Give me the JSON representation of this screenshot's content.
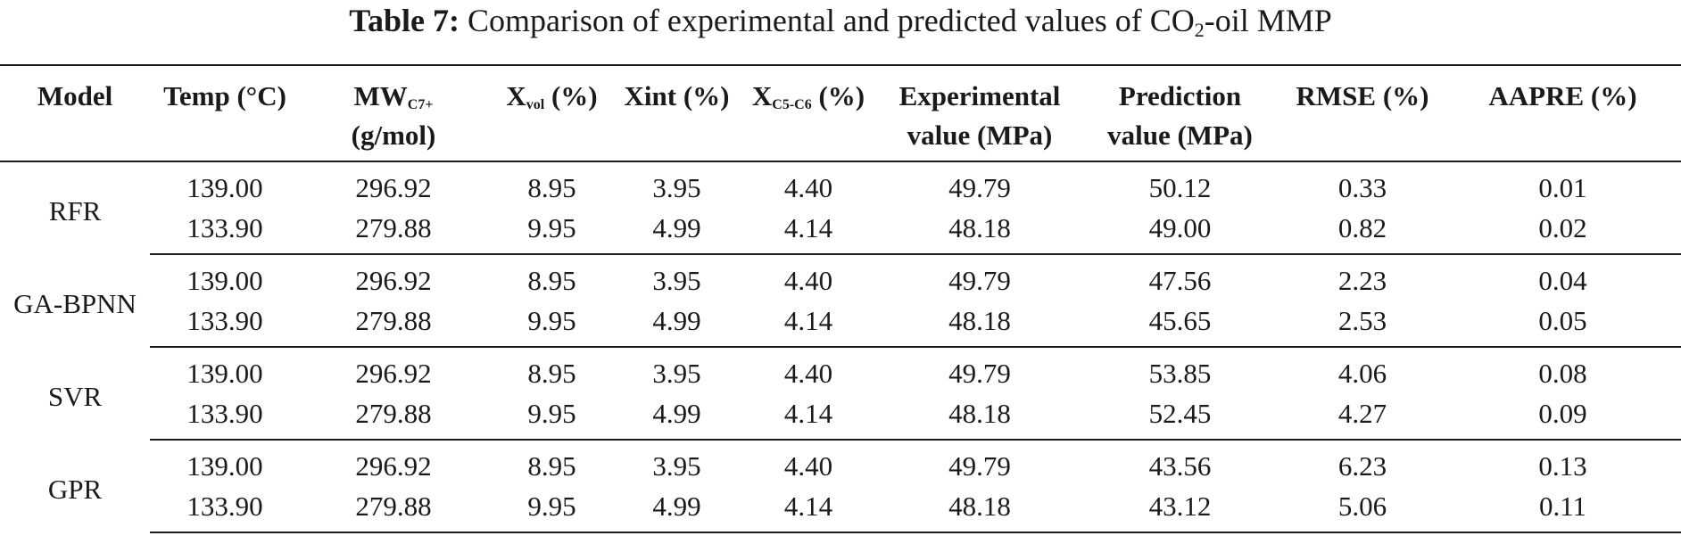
{
  "caption": {
    "label": "Table 7:",
    "text_before": "Comparison of experimental and predicted values of CO",
    "text_sub": "2",
    "text_after": "-oil MMP"
  },
  "headers": {
    "model": "Model",
    "temp": "Temp (°C)",
    "mw_main": "MW",
    "mw_sub": "C7+",
    "mw_unit": "(g/mol)",
    "xvol_main": "X",
    "xvol_sub": "vol",
    "xvol_unit": "(%)",
    "xint": "Xint (%)",
    "xc5_main": "X",
    "xc5_sub": "C5-C6",
    "xc5_unit": "(%)",
    "exp_line1": "Experimental",
    "exp_line2": "value (MPa)",
    "pred_line1": "Prediction",
    "pred_line2": "value (MPa)",
    "rmse": "RMSE (%)",
    "aapre": "AAPRE (%)"
  },
  "groups": [
    {
      "model": "RFR",
      "rows": [
        [
          "139.00",
          "296.92",
          "8.95",
          "3.95",
          "4.40",
          "49.79",
          "50.12",
          "0.33",
          "0.01"
        ],
        [
          "133.90",
          "279.88",
          "9.95",
          "4.99",
          "4.14",
          "48.18",
          "49.00",
          "0.82",
          "0.02"
        ]
      ]
    },
    {
      "model": "GA-BPNN",
      "rows": [
        [
          "139.00",
          "296.92",
          "8.95",
          "3.95",
          "4.40",
          "49.79",
          "47.56",
          "2.23",
          "0.04"
        ],
        [
          "133.90",
          "279.88",
          "9.95",
          "4.99",
          "4.14",
          "48.18",
          "45.65",
          "2.53",
          "0.05"
        ]
      ]
    },
    {
      "model": "SVR",
      "rows": [
        [
          "139.00",
          "296.92",
          "8.95",
          "3.95",
          "4.40",
          "49.79",
          "53.85",
          "4.06",
          "0.08"
        ],
        [
          "133.90",
          "279.88",
          "9.95",
          "4.99",
          "4.14",
          "48.18",
          "52.45",
          "4.27",
          "0.09"
        ]
      ]
    },
    {
      "model": "GPR",
      "rows": [
        [
          "139.00",
          "296.92",
          "8.95",
          "3.95",
          "4.40",
          "49.79",
          "43.56",
          "6.23",
          "0.13"
        ],
        [
          "133.90",
          "279.88",
          "9.95",
          "4.99",
          "4.14",
          "48.18",
          "43.12",
          "5.06",
          "0.11"
        ]
      ]
    }
  ]
}
